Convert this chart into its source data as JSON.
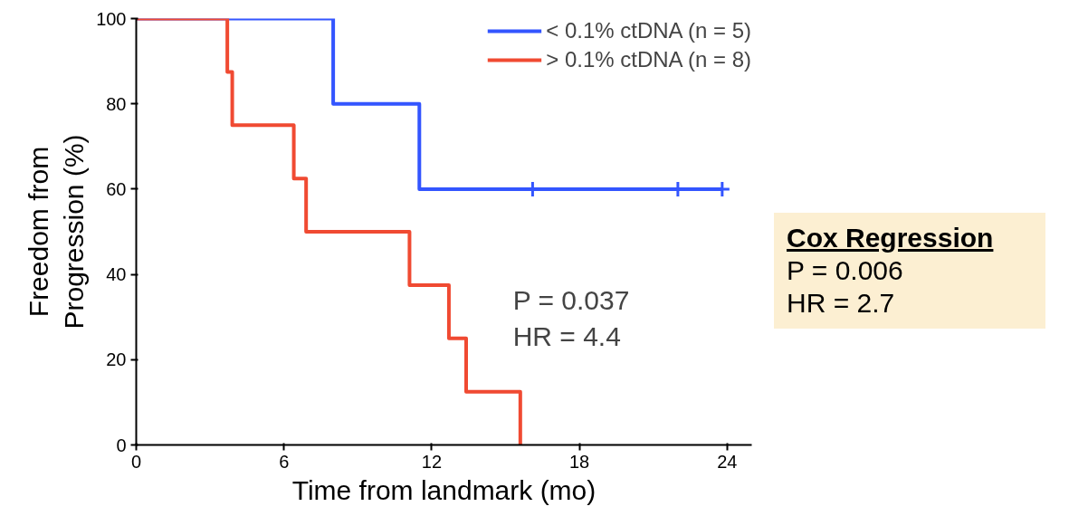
{
  "chart_data": {
    "type": "step",
    "xlabel": "Time from landmark (mo)",
    "ylabel": "Freedom from\nProgression (%)",
    "xlim": [
      0,
      25
    ],
    "xticks": [
      0,
      6,
      12,
      18,
      24
    ],
    "ylim": [
      0,
      100
    ],
    "yticks": [
      0,
      20,
      40,
      60,
      80,
      100
    ],
    "grid": false,
    "legend": "top right",
    "line_style": "solid",
    "series": [
      {
        "name": "< 0.1% ctDNA (n = 5)",
        "color": "#3355ff",
        "x": [
          0,
          8,
          11.5,
          23.8
        ],
        "values": [
          100,
          80,
          60,
          60
        ]
      },
      {
        "name": "> 0.1% ctDNA (n = 8)",
        "color": "#f04a32",
        "x": [
          0,
          3.7,
          3.9,
          6.4,
          6.9,
          11.1,
          12.7,
          13.4,
          15.6
        ],
        "values": [
          100,
          87.5,
          75,
          62.5,
          50,
          37.5,
          25,
          12.5,
          0
        ]
      },
      {
        "type": "scatter",
        "marker": "cross",
        "color": "#3355ff",
        "x": [
          16.1,
          22,
          23.8
        ],
        "values": [
          60,
          60,
          60
        ]
      }
    ],
    "annotations": [
      "P = 0.037",
      "HR = 4.4",
      "Cox Regression",
      "P = 0.006",
      "HR = 2.7"
    ]
  }
}
